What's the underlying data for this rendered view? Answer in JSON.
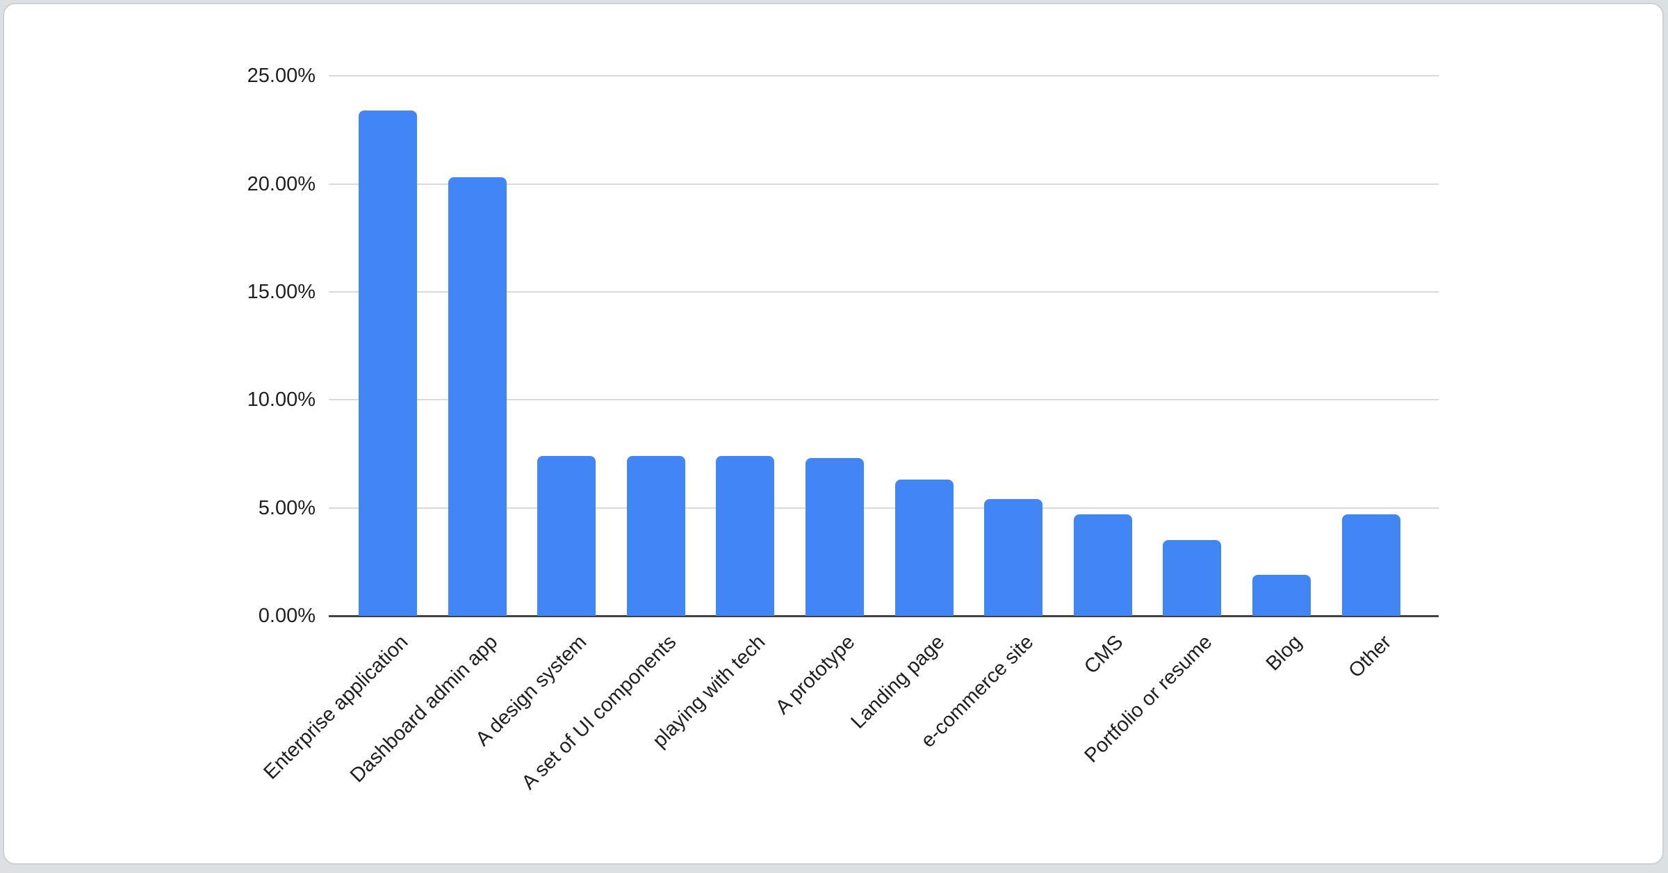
{
  "page": {
    "background_color": "#dde0e3",
    "card_background": "#ffffff",
    "card_border_color": "#cdd1d5"
  },
  "chart_data": {
    "type": "bar",
    "title": "",
    "categories": [
      "Enterprise application",
      "Dashboard admin app",
      "A design system",
      "A set of UI components",
      "playing with tech",
      "A prototype",
      "Landing page",
      "e-commerce site",
      "CMS",
      "Portfolio or resume",
      "Blog",
      "Other"
    ],
    "values": [
      23.4,
      20.3,
      7.4,
      7.4,
      7.4,
      7.3,
      6.3,
      5.4,
      4.7,
      3.5,
      1.9,
      4.7
    ],
    "value_unit": "%",
    "xlabel": "",
    "ylabel": "",
    "ylim": [
      0,
      25
    ],
    "y_tick_labels": [
      "0.00%",
      "5.00%",
      "10.00%",
      "15.00%",
      "20.00%",
      "25.00%"
    ],
    "y_tick_values": [
      0,
      5,
      10,
      15,
      20,
      25
    ],
    "grid": true,
    "legend_position": "none",
    "x_label_rotation_deg": -45,
    "colors": {
      "bar": "#4285f4",
      "gridline": "#d9d9d9",
      "axis_baseline": "#424242",
      "axis_text": "#1f1f1f"
    }
  }
}
